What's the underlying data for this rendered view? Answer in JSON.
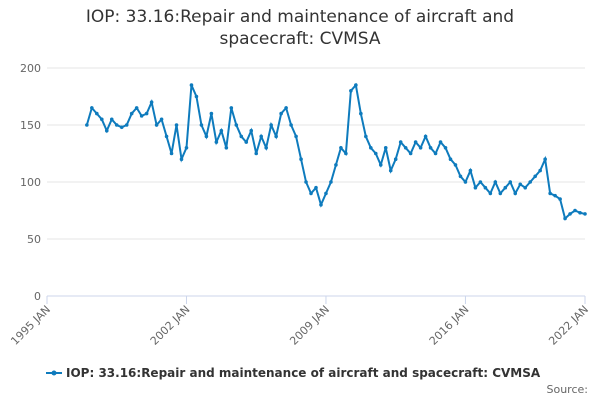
{
  "chart_data": {
    "type": "line",
    "title": "IOP: 33.16:Repair and maintenance of aircraft and spacecraft: CVMSA",
    "source": "Source:",
    "x": [
      "1997-01",
      "1997-04",
      "1997-07",
      "1997-10",
      "1998-01",
      "1998-04",
      "1998-07",
      "1998-10",
      "1999-01",
      "1999-04",
      "1999-07",
      "1999-10",
      "2000-01",
      "2000-04",
      "2000-07",
      "2000-10",
      "2001-01",
      "2001-04",
      "2001-07",
      "2001-10",
      "2002-01",
      "2002-04",
      "2002-07",
      "2002-10",
      "2003-01",
      "2003-04",
      "2003-07",
      "2003-10",
      "2004-01",
      "2004-04",
      "2004-07",
      "2004-10",
      "2005-01",
      "2005-04",
      "2005-07",
      "2005-10",
      "2006-01",
      "2006-04",
      "2006-07",
      "2006-10",
      "2007-01",
      "2007-04",
      "2007-07",
      "2007-10",
      "2008-01",
      "2008-04",
      "2008-07",
      "2008-10",
      "2009-01",
      "2009-04",
      "2009-07",
      "2009-10",
      "2010-01",
      "2010-04",
      "2010-07",
      "2010-10",
      "2011-01",
      "2011-04",
      "2011-07",
      "2011-10",
      "2012-01",
      "2012-04",
      "2012-07",
      "2012-10",
      "2013-01",
      "2013-04",
      "2013-07",
      "2013-10",
      "2014-01",
      "2014-04",
      "2014-07",
      "2014-10",
      "2015-01",
      "2015-04",
      "2015-07",
      "2015-10",
      "2016-01",
      "2016-04",
      "2016-07",
      "2016-10",
      "2017-01",
      "2017-04",
      "2017-07",
      "2017-10",
      "2018-01",
      "2018-04",
      "2018-07",
      "2018-10",
      "2019-01",
      "2019-04",
      "2019-07",
      "2019-10",
      "2020-01",
      "2020-04",
      "2020-07",
      "2020-10",
      "2021-01",
      "2021-04",
      "2021-07",
      "2021-10",
      "2022-01"
    ],
    "series": [
      {
        "name": "IOP: 33.16:Repair and maintenance of aircraft and spacecraft: CVMSA",
        "color": "#0e7bbd",
        "values": [
          150,
          165,
          160,
          155,
          145,
          155,
          150,
          148,
          150,
          160,
          165,
          158,
          160,
          170,
          150,
          155,
          140,
          125,
          150,
          120,
          130,
          185,
          175,
          150,
          140,
          160,
          135,
          145,
          130,
          165,
          150,
          140,
          135,
          145,
          125,
          140,
          130,
          150,
          140,
          160,
          165,
          150,
          140,
          120,
          100,
          90,
          95,
          80,
          90,
          100,
          115,
          130,
          125,
          180,
          185,
          160,
          140,
          130,
          125,
          115,
          130,
          110,
          120,
          135,
          130,
          125,
          135,
          130,
          140,
          130,
          125,
          135,
          130,
          120,
          115,
          105,
          100,
          110,
          95,
          100,
          95,
          90,
          100,
          90,
          95,
          100,
          90,
          98,
          95,
          100,
          105,
          110,
          120,
          90,
          88,
          85,
          68,
          72,
          75,
          73,
          72
        ]
      }
    ],
    "xlim": [
      "1995-01",
      "2022-01"
    ],
    "xticks": [
      {
        "value": "1995-01",
        "label": "1995 JAN"
      },
      {
        "value": "2002-01",
        "label": "2002 JAN"
      },
      {
        "value": "2009-01",
        "label": "2009 JAN"
      },
      {
        "value": "2016-01",
        "label": "2016 JAN"
      },
      {
        "value": "2022-01",
        "label": "2022 JAN"
      }
    ],
    "ylim": [
      0,
      200
    ],
    "yticks": [
      0,
      50,
      100,
      150,
      200
    ],
    "grid": true
  }
}
